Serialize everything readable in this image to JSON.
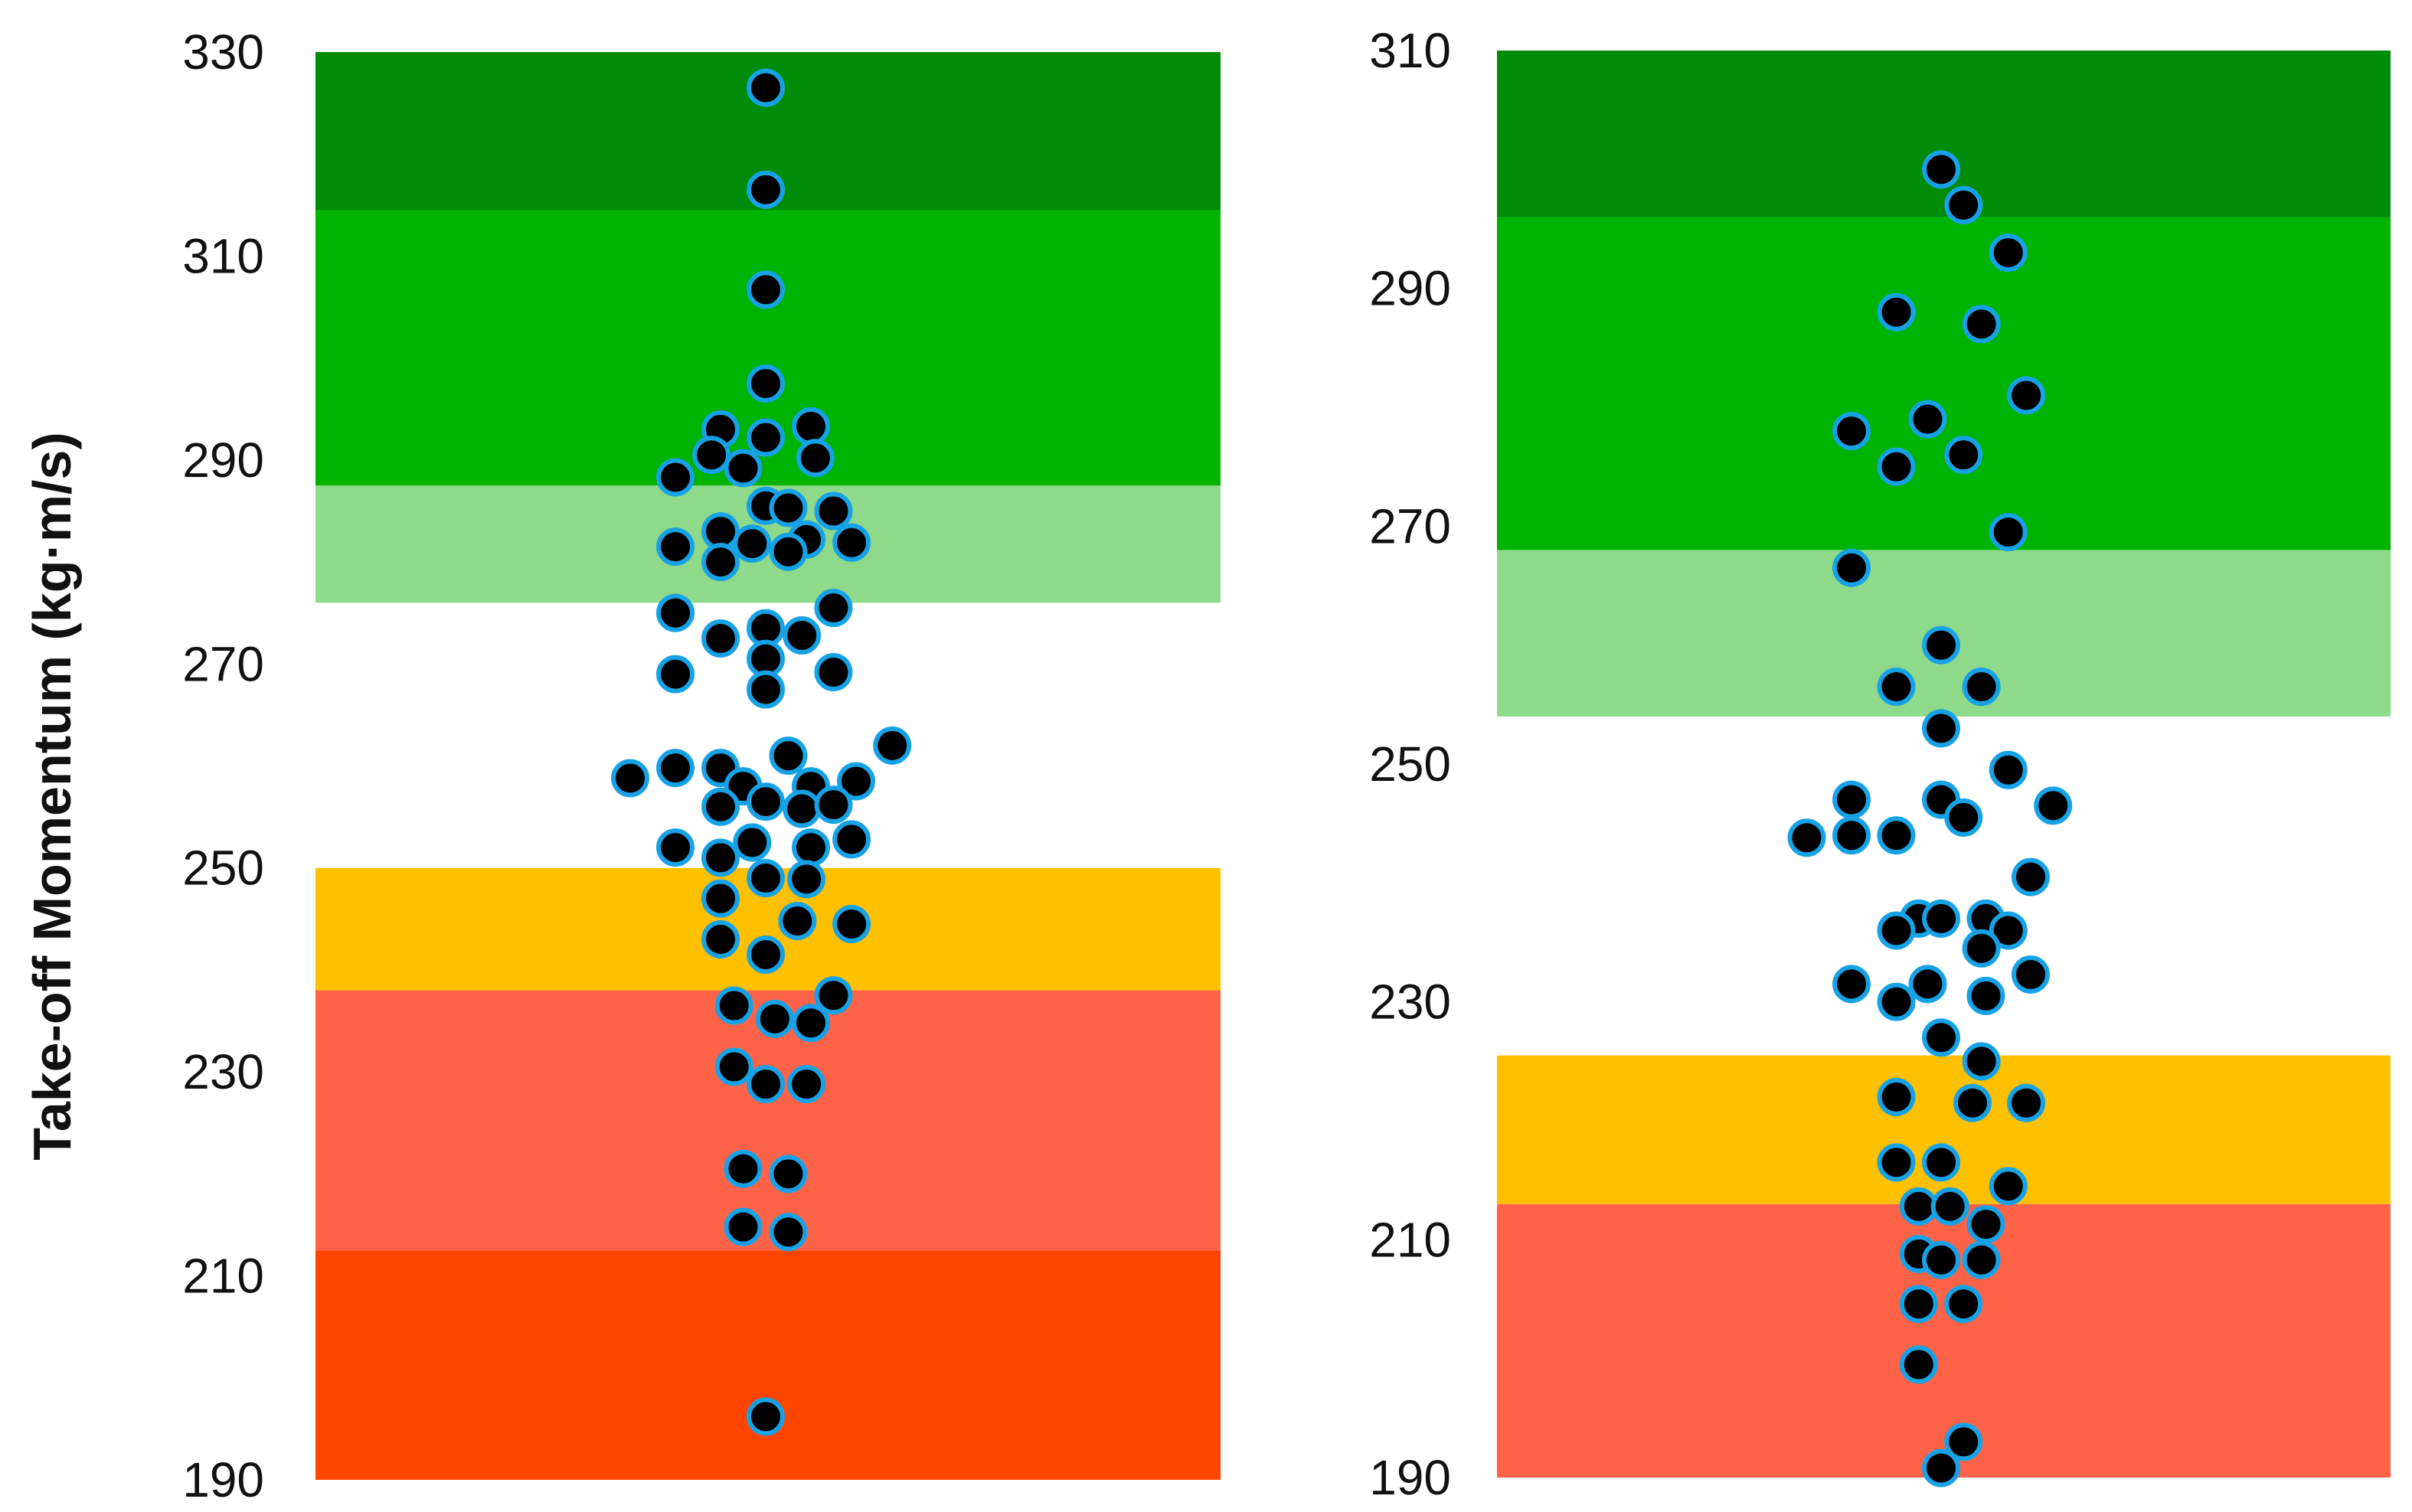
{
  "chart_data": [
    {
      "type": "scatter",
      "variant": "beeswarm",
      "title": "",
      "xlabel": "",
      "ylabel": "Take-off Momentum (kg·m/s)",
      "ylim": [
        190,
        330
      ],
      "yticks": [
        190,
        210,
        230,
        250,
        270,
        290,
        310,
        330
      ],
      "bands": [
        {
          "from": 190,
          "to": 212.5,
          "color": "#ff4500"
        },
        {
          "from": 212.5,
          "to": 238,
          "color": "#ff6347"
        },
        {
          "from": 238,
          "to": 250,
          "color": "#ffc000"
        },
        {
          "from": 250,
          "to": 276,
          "color": "#ffffff"
        },
        {
          "from": 276,
          "to": 287.5,
          "color": "#8fd98a"
        },
        {
          "from": 287.5,
          "to": 314.5,
          "color": "#00b300"
        },
        {
          "from": 314.5,
          "to": 330,
          "color": "#008c08"
        }
      ],
      "points": [
        {
          "x": 0,
          "y": 326.5
        },
        {
          "x": 0,
          "y": 316.5
        },
        {
          "x": 0,
          "y": 306.7
        },
        {
          "x": 0,
          "y": 297.5
        },
        {
          "x": -1,
          "y": 293.0
        },
        {
          "x": 1,
          "y": 293.3
        },
        {
          "x": 0,
          "y": 292.2
        },
        {
          "x": -1.2,
          "y": 290.5
        },
        {
          "x": 1.1,
          "y": 290.2
        },
        {
          "x": -0.5,
          "y": 289.2
        },
        {
          "x": -2.0,
          "y": 288.3
        },
        {
          "x": 0,
          "y": 285.5
        },
        {
          "x": 0.5,
          "y": 285.3
        },
        {
          "x": 1.5,
          "y": 285.0
        },
        {
          "x": -1.0,
          "y": 283.0
        },
        {
          "x": 0.9,
          "y": 282.2
        },
        {
          "x": 1.9,
          "y": 281.9
        },
        {
          "x": -2.0,
          "y": 281.5
        },
        {
          "x": -0.3,
          "y": 281.8
        },
        {
          "x": 0.5,
          "y": 281.0
        },
        {
          "x": -1.0,
          "y": 280.0
        },
        {
          "x": 1.5,
          "y": 275.5
        },
        {
          "x": -2.0,
          "y": 275.0
        },
        {
          "x": 0,
          "y": 273.5
        },
        {
          "x": -1.0,
          "y": 272.5
        },
        {
          "x": 0.8,
          "y": 272.8
        },
        {
          "x": 0,
          "y": 270.5
        },
        {
          "x": -2.0,
          "y": 269.0
        },
        {
          "x": 1.5,
          "y": 269.2
        },
        {
          "x": 0,
          "y": 267.5
        },
        {
          "x": 2.8,
          "y": 262.0
        },
        {
          "x": 0.5,
          "y": 261.0
        },
        {
          "x": -3.0,
          "y": 258.8
        },
        {
          "x": -2.0,
          "y": 259.8
        },
        {
          "x": -1.0,
          "y": 259.8
        },
        {
          "x": -0.5,
          "y": 258.0
        },
        {
          "x": 1.0,
          "y": 258.0
        },
        {
          "x": 2.0,
          "y": 258.5
        },
        {
          "x": -1.0,
          "y": 256.0
        },
        {
          "x": 0,
          "y": 256.5
        },
        {
          "x": 0.8,
          "y": 255.8
        },
        {
          "x": 1.5,
          "y": 256.2
        },
        {
          "x": -0.3,
          "y": 252.5
        },
        {
          "x": -2.0,
          "y": 252.0
        },
        {
          "x": 1.0,
          "y": 252.0
        },
        {
          "x": 1.9,
          "y": 252.8
        },
        {
          "x": -1.0,
          "y": 251.0
        },
        {
          "x": 0,
          "y": 249.0
        },
        {
          "x": 0.9,
          "y": 248.9
        },
        {
          "x": -1.0,
          "y": 247.0
        },
        {
          "x": 0.7,
          "y": 244.8
        },
        {
          "x": 1.9,
          "y": 244.5
        },
        {
          "x": -1.0,
          "y": 243.0
        },
        {
          "x": 0,
          "y": 241.5
        },
        {
          "x": 1.5,
          "y": 237.5
        },
        {
          "x": -0.7,
          "y": 236.5
        },
        {
          "x": 0.2,
          "y": 235.2
        },
        {
          "x": 1.0,
          "y": 234.8
        },
        {
          "x": -0.7,
          "y": 230.5
        },
        {
          "x": 0,
          "y": 228.8
        },
        {
          "x": 0.9,
          "y": 228.8
        },
        {
          "x": -0.5,
          "y": 220.5
        },
        {
          "x": 0.5,
          "y": 220.0
        },
        {
          "x": -0.5,
          "y": 214.8
        },
        {
          "x": 0.5,
          "y": 214.3
        },
        {
          "x": 0,
          "y": 196.2
        }
      ]
    },
    {
      "type": "scatter",
      "variant": "beeswarm",
      "title": "",
      "xlabel": "",
      "ylabel": "",
      "ylim": [
        190,
        310
      ],
      "yticks": [
        190,
        210,
        230,
        250,
        270,
        290,
        310
      ],
      "bands": [
        {
          "from": 190,
          "to": 213,
          "color": "#ff6347"
        },
        {
          "from": 213,
          "to": 225.5,
          "color": "#ffc000"
        },
        {
          "from": 225.5,
          "to": 254,
          "color": "#ffffff"
        },
        {
          "from": 254,
          "to": 268,
          "color": "#8fd98a"
        },
        {
          "from": 268,
          "to": 296,
          "color": "#00b300"
        },
        {
          "from": 296,
          "to": 310,
          "color": "#008c08"
        }
      ],
      "points": [
        {
          "x": 0,
          "y": 300.0
        },
        {
          "x": 0.5,
          "y": 297.0
        },
        {
          "x": 1.5,
          "y": 293.0
        },
        {
          "x": -1.0,
          "y": 288.0
        },
        {
          "x": 0.9,
          "y": 287.0
        },
        {
          "x": 1.9,
          "y": 281.0
        },
        {
          "x": -2.0,
          "y": 278.0
        },
        {
          "x": -0.3,
          "y": 279.0
        },
        {
          "x": -1.0,
          "y": 275.0
        },
        {
          "x": 0.5,
          "y": 276.0
        },
        {
          "x": 1.5,
          "y": 269.5
        },
        {
          "x": -2.0,
          "y": 266.5
        },
        {
          "x": 0,
          "y": 260.0
        },
        {
          "x": -1.0,
          "y": 256.5
        },
        {
          "x": 0.9,
          "y": 256.5
        },
        {
          "x": 0,
          "y": 253.0
        },
        {
          "x": 1.5,
          "y": 249.5
        },
        {
          "x": 2.5,
          "y": 246.5
        },
        {
          "x": -2.0,
          "y": 247.0
        },
        {
          "x": 0,
          "y": 247.0
        },
        {
          "x": 0.5,
          "y": 245.5
        },
        {
          "x": -3.0,
          "y": 243.8
        },
        {
          "x": -2.0,
          "y": 244.0
        },
        {
          "x": -1.0,
          "y": 244.0
        },
        {
          "x": 2.0,
          "y": 240.5
        },
        {
          "x": -0.5,
          "y": 237.0
        },
        {
          "x": 0,
          "y": 237.0
        },
        {
          "x": 1.0,
          "y": 237.0
        },
        {
          "x": -1.0,
          "y": 236.0
        },
        {
          "x": 1.5,
          "y": 236.0
        },
        {
          "x": 0.9,
          "y": 234.5
        },
        {
          "x": -2.0,
          "y": 231.5
        },
        {
          "x": -0.3,
          "y": 231.5
        },
        {
          "x": 2.0,
          "y": 232.3
        },
        {
          "x": -1.0,
          "y": 230.0
        },
        {
          "x": 1.0,
          "y": 230.5
        },
        {
          "x": 0,
          "y": 227.0
        },
        {
          "x": 0.9,
          "y": 225.0
        },
        {
          "x": -1.0,
          "y": 222.0
        },
        {
          "x": 0.7,
          "y": 221.5
        },
        {
          "x": 1.9,
          "y": 221.5
        },
        {
          "x": -1.0,
          "y": 216.5
        },
        {
          "x": 0,
          "y": 216.5
        },
        {
          "x": 1.5,
          "y": 214.5
        },
        {
          "x": -0.5,
          "y": 212.8
        },
        {
          "x": 0.2,
          "y": 212.8
        },
        {
          "x": 1.0,
          "y": 211.3
        },
        {
          "x": -0.5,
          "y": 208.8
        },
        {
          "x": 0,
          "y": 208.3
        },
        {
          "x": 0.9,
          "y": 208.3
        },
        {
          "x": -0.5,
          "y": 204.6
        },
        {
          "x": 0.5,
          "y": 204.6
        },
        {
          "x": -0.5,
          "y": 199.5
        },
        {
          "x": 0.5,
          "y": 193.0
        },
        {
          "x": 0,
          "y": 190.8
        }
      ]
    }
  ]
}
